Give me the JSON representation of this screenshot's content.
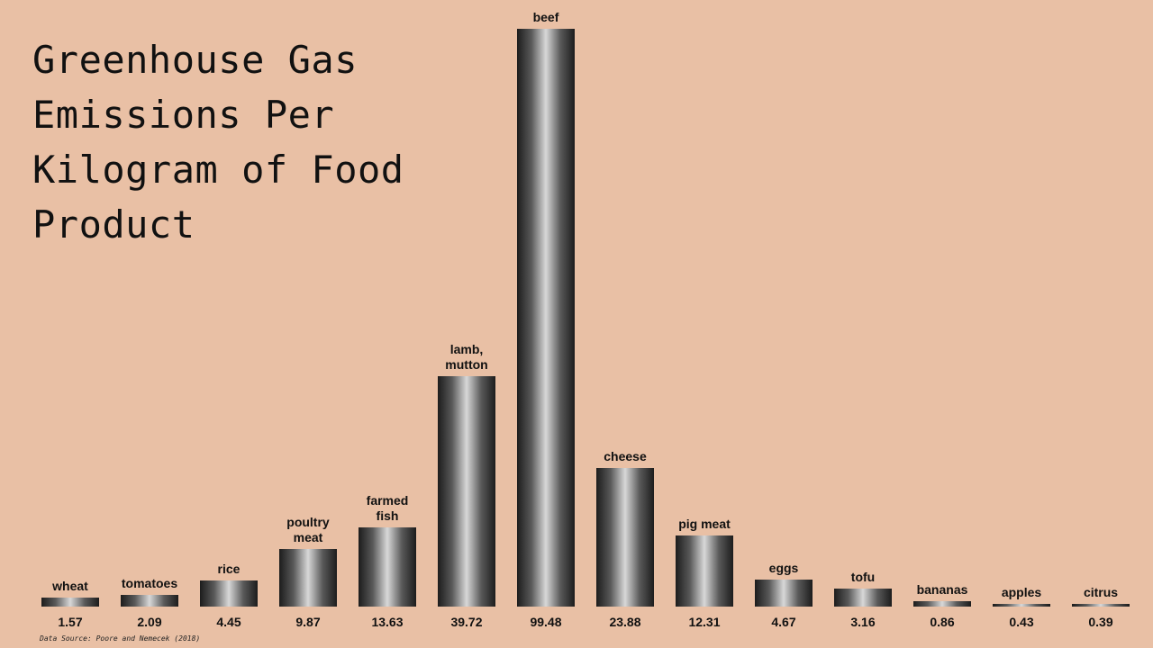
{
  "chart_data": {
    "type": "bar",
    "title": "Greenhouse Gas Emissions Per Kilogram of Food Product",
    "source": "Data Source: Poore and Nemecek (2018)",
    "categories": [
      "wheat",
      "tomatoes",
      "rice",
      "poultry meat",
      "farmed fish",
      "lamb, mutton",
      "beef",
      "cheese",
      "pig meat",
      "eggs",
      "tofu",
      "bananas",
      "apples",
      "citrus"
    ],
    "values": [
      1.57,
      2.09,
      4.45,
      9.87,
      13.63,
      39.72,
      99.48,
      23.88,
      12.31,
      4.67,
      3.16,
      0.86,
      0.43,
      0.39
    ]
  }
}
